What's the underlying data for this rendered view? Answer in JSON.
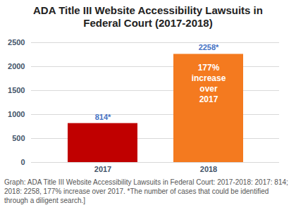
{
  "chart_data": {
    "type": "bar",
    "title": "ADA Title III Website Accessibility Lawsuits in Federal Court (2017-2018)",
    "categories": [
      "2017",
      "2018"
    ],
    "values": [
      814,
      2258
    ],
    "value_labels": [
      "814*",
      "2258*"
    ],
    "colors": [
      "#c00000",
      "#f47a1f"
    ],
    "ylim": [
      0,
      2500
    ],
    "yticks": [
      0,
      500,
      1000,
      1500,
      2000,
      2500
    ],
    "grid": true,
    "data_labels": true,
    "annotations": [
      {
        "text": "177% increase over 2017",
        "category": "2018"
      }
    ],
    "caption": "Graph: ADA Title III Website Accessibility Lawsuits in Federal Court: 2017-2018: 2017: 814; 2018: 2258, 177% increase over 2017. *The number of cases that could be identified through a diligent search.]"
  }
}
